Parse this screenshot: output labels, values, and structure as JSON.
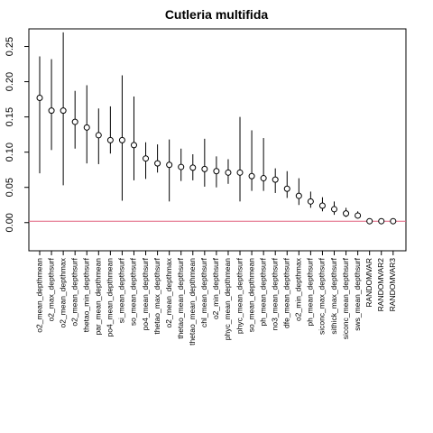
{
  "chart_data": {
    "type": "scatter",
    "title": "Cutleria multifida",
    "xlabel": "",
    "ylabel": "",
    "ylim": [
      -0.04,
      0.275
    ],
    "yticks": [
      0.0,
      0.05,
      0.1,
      0.15,
      0.2,
      0.25
    ],
    "ytick_labels": [
      "0.00",
      "0.05",
      "0.10",
      "0.15",
      "0.20",
      "0.25"
    ],
    "grid": false,
    "reference_line": {
      "y": 0.002,
      "color": "#e0607e"
    },
    "categories": [
      "o2_mean_depthmean",
      "o2_max_depthsurf",
      "o2_mean_depthmax",
      "o2_mean_depthsurf",
      "thetao_min_depthsurf",
      "par_mean_depthmean",
      "po4_mean_depthmean",
      "si_mean_depthsurf",
      "so_mean_depthsurf",
      "po4_mean_depthsurf",
      "thetao_max_depthsurf",
      "o2_mean_depthmax",
      "thetao_mean_depthsurf",
      "thetao_mean_depthmean",
      "chl_mean_depthsurf",
      "o2_min_depthsurf",
      "phyc_mean_depthmean",
      "phyc_mean_depthsurf",
      "so_mean_depthmean",
      "ph_mean_depthsurf",
      "no3_mean_depthsurf",
      "dfe_mean_depthsurf",
      "o2_min_depthmax",
      "ph_mean_depthsurf",
      "siconc_max_depthsurf",
      "sithick_max_depthsurf",
      "siconc_mean_depthsurf",
      "sws_mean_depthsurf",
      "RANDOMVAR",
      "RANDOMVAR2",
      "RANDOMVAR3"
    ],
    "values": [
      0.177,
      0.159,
      0.159,
      0.143,
      0.135,
      0.124,
      0.117,
      0.117,
      0.11,
      0.091,
      0.084,
      0.082,
      0.079,
      0.078,
      0.076,
      0.073,
      0.071,
      0.071,
      0.066,
      0.063,
      0.061,
      0.048,
      0.038,
      0.03,
      0.024,
      0.019,
      0.013,
      0.01,
      0.002,
      0.002,
      0.002
    ],
    "lower": [
      0.07,
      0.103,
      0.053,
      0.105,
      0.084,
      0.083,
      0.098,
      0.031,
      0.06,
      0.062,
      0.071,
      0.03,
      0.059,
      0.06,
      0.051,
      0.05,
      0.055,
      0.03,
      0.045,
      0.045,
      0.042,
      0.035,
      0.025,
      0.021,
      0.016,
      0.011,
      0.008,
      0.006,
      0.002,
      0.002,
      0.002
    ],
    "upper": [
      0.236,
      0.232,
      0.27,
      0.187,
      0.195,
      0.162,
      0.165,
      0.209,
      0.179,
      0.114,
      0.111,
      0.118,
      0.105,
      0.097,
      0.119,
      0.094,
      0.09,
      0.15,
      0.131,
      0.12,
      0.077,
      0.073,
      0.063,
      0.044,
      0.036,
      0.03,
      0.021,
      0.016,
      0.002,
      0.002,
      0.002
    ],
    "colors": {
      "points": "#000000",
      "error_bars": "#000000",
      "axis": "#000000"
    }
  }
}
